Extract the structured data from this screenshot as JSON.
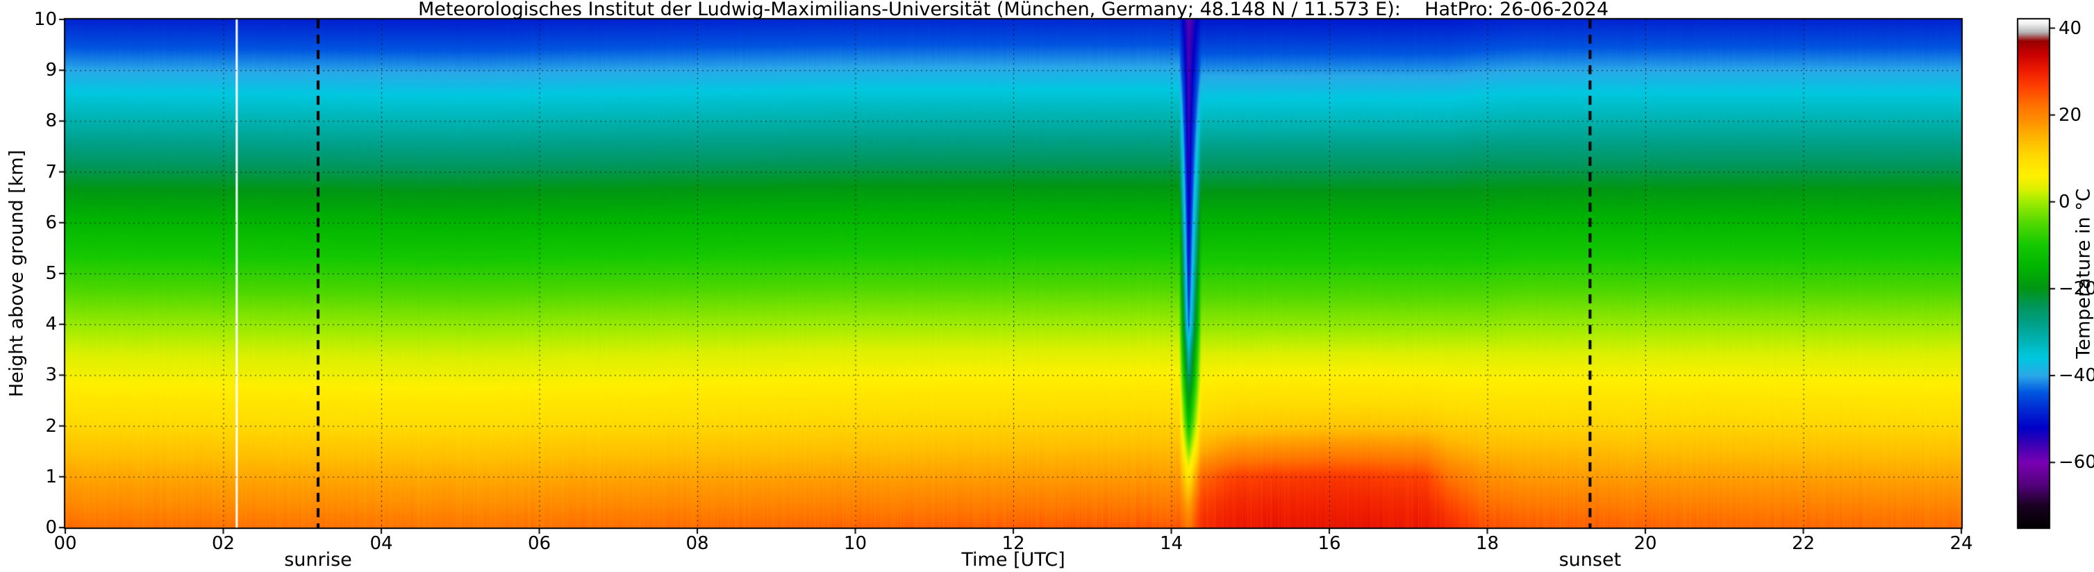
{
  "chart_data": {
    "type": "heatmap",
    "title": "Meteorologisches Institut der Ludwig-Maximilians-Universität (München, Germany; 48.148 N / 11.573 E):    HatPro: 26-06-2024",
    "xlabel": "Time [UTC]",
    "ylabel": "Height above ground [km]",
    "x_range": [
      0,
      24
    ],
    "y_range": [
      0,
      10
    ],
    "grid": {
      "x_step_hours": 2,
      "y_step_km": 1,
      "style": "dashed"
    },
    "x_ticks": [
      {
        "value": 0,
        "label": "00"
      },
      {
        "value": 2,
        "label": "02"
      },
      {
        "value": 4,
        "label": "04"
      },
      {
        "value": 6,
        "label": "06"
      },
      {
        "value": 8,
        "label": "08"
      },
      {
        "value": 10,
        "label": "10"
      },
      {
        "value": 12,
        "label": "12"
      },
      {
        "value": 14,
        "label": "14"
      },
      {
        "value": 16,
        "label": "16"
      },
      {
        "value": 18,
        "label": "18"
      },
      {
        "value": 20,
        "label": "20"
      },
      {
        "value": 22,
        "label": "22"
      },
      {
        "value": 24,
        "label": "24"
      }
    ],
    "y_ticks": [
      {
        "value": 0,
        "label": "0"
      },
      {
        "value": 1,
        "label": "1"
      },
      {
        "value": 2,
        "label": "2"
      },
      {
        "value": 3,
        "label": "3"
      },
      {
        "value": 4,
        "label": "4"
      },
      {
        "value": 5,
        "label": "5"
      },
      {
        "value": 6,
        "label": "6"
      },
      {
        "value": 7,
        "label": "7"
      },
      {
        "value": 8,
        "label": "8"
      },
      {
        "value": 9,
        "label": "9"
      },
      {
        "value": 10,
        "label": "10"
      }
    ],
    "sunrise": {
      "time_utc": 3.2,
      "label": "sunrise"
    },
    "sunset": {
      "time_utc": 19.3,
      "label": "sunset"
    },
    "data_gap_line": {
      "time_utc": 2.17,
      "color": "#ffffff"
    },
    "colorbar": {
      "label": "Temperature in °C",
      "range": [
        -75,
        42
      ],
      "ticks": [
        {
          "value": 40,
          "label": "40"
        },
        {
          "value": 20,
          "label": "20"
        },
        {
          "value": 0,
          "label": "0"
        },
        {
          "value": -20,
          "label": "−20"
        },
        {
          "value": -40,
          "label": "−40"
        },
        {
          "value": -60,
          "label": "−60"
        }
      ]
    },
    "colormap": [
      [
        -75,
        "#000000"
      ],
      [
        -70,
        "#1a0022"
      ],
      [
        -65,
        "#55007f"
      ],
      [
        -60,
        "#7a00b4"
      ],
      [
        -56,
        "#3c00b4"
      ],
      [
        -52,
        "#0000c8"
      ],
      [
        -48,
        "#0028d2"
      ],
      [
        -44,
        "#0055e0"
      ],
      [
        -40,
        "#2aa8e8"
      ],
      [
        -36,
        "#00c8e0"
      ],
      [
        -32,
        "#00b4b4"
      ],
      [
        -28,
        "#00a088"
      ],
      [
        -24,
        "#00965a"
      ],
      [
        -20,
        "#009614"
      ],
      [
        -15,
        "#00b400"
      ],
      [
        -10,
        "#14c800"
      ],
      [
        -5,
        "#50d800"
      ],
      [
        0,
        "#a0ec00"
      ],
      [
        3,
        "#dcf000"
      ],
      [
        6,
        "#fff000"
      ],
      [
        10,
        "#ffdc00"
      ],
      [
        14,
        "#ffbe00"
      ],
      [
        18,
        "#ff9600"
      ],
      [
        22,
        "#ff7300"
      ],
      [
        26,
        "#ff4600"
      ],
      [
        30,
        "#f01e00"
      ],
      [
        34,
        "#c80000"
      ],
      [
        37,
        "#960000"
      ],
      [
        39,
        "#b4b4b4"
      ],
      [
        41,
        "#f0f0f0"
      ],
      [
        42,
        "#ffffff"
      ]
    ],
    "heights_km": [
      0,
      0.2,
      0.5,
      1,
      1.5,
      2,
      2.5,
      3,
      3.5,
      4,
      4.5,
      5,
      5.5,
      6,
      6.5,
      7,
      7.5,
      8,
      8.5,
      9,
      9.5,
      10
    ],
    "profiles": [
      {
        "t": 0,
        "v": [
          22.5,
          21,
          19,
          16.5,
          13.5,
          10.5,
          8,
          5,
          2.5,
          -0.5,
          -4,
          -7.5,
          -11,
          -14.5,
          -18.5,
          -23,
          -27.5,
          -31.5,
          -35.5,
          -40,
          -44.5,
          -48.5
        ]
      },
      {
        "t": 5,
        "v": [
          21.5,
          20.5,
          18.5,
          16,
          13,
          10,
          7.5,
          4.5,
          2,
          -1,
          -4.5,
          -8,
          -11.5,
          -15,
          -19,
          -23.5,
          -28,
          -32,
          -36,
          -40.5,
          -45,
          -49
        ]
      },
      {
        "t": 10,
        "v": [
          23.5,
          22,
          20,
          17,
          14,
          11,
          8.5,
          5.5,
          3,
          0,
          -3.5,
          -7,
          -10.5,
          -14,
          -18,
          -22.5,
          -27,
          -31,
          -35,
          -39.5,
          -44,
          -48
        ]
      },
      {
        "t": 13.5,
        "v": [
          24.5,
          23,
          21,
          17.5,
          14.5,
          11.5,
          9,
          6,
          3,
          0,
          -3.5,
          -7,
          -10.5,
          -14,
          -18,
          -22.5,
          -27,
          -31,
          -35,
          -39.5,
          -44,
          -48
        ]
      },
      {
        "t": 14.1,
        "v": [
          24.5,
          23,
          21,
          17.5,
          14.5,
          11.5,
          9,
          6,
          3,
          0,
          -3.5,
          -7,
          -10.5,
          -14,
          -18,
          -22.5,
          -27,
          -31,
          -35,
          -39.5,
          -44,
          -48
        ]
      },
      {
        "t": 14.22,
        "v": [
          21,
          19.5,
          16,
          8,
          -2,
          -12,
          -20,
          -28,
          -34.5,
          -44,
          -47,
          -49.5,
          -51.5,
          -53,
          -54.5,
          -55.5,
          -56,
          -56.5,
          -57,
          -57.3,
          -57.6,
          -58
        ]
      },
      {
        "t": 14.38,
        "v": [
          28.5,
          28,
          26.5,
          23,
          16,
          11.5,
          8.5,
          5.5,
          2.5,
          -1,
          -4.5,
          -8,
          -11.5,
          -15,
          -19,
          -23.5,
          -28,
          -32.5,
          -36.5,
          -41,
          -45.5,
          -49.5
        ]
      },
      {
        "t": 14.8,
        "v": [
          30.5,
          30,
          29,
          26.5,
          19,
          12.5,
          9.5,
          6,
          2.5,
          -1,
          -4.5,
          -8,
          -11.5,
          -15,
          -19,
          -23.5,
          -28,
          -32.5,
          -36.5,
          -41,
          -45.5,
          -49.5
        ]
      },
      {
        "t": 16,
        "v": [
          31,
          30.5,
          29.5,
          27.5,
          20,
          13,
          9.5,
          6,
          2.5,
          -1,
          -4.5,
          -8,
          -11.5,
          -15,
          -19,
          -23.5,
          -28,
          -32.5,
          -36.5,
          -41,
          -45.5,
          -49.5
        ]
      },
      {
        "t": 17.2,
        "v": [
          30.5,
          30,
          29,
          26.5,
          19.5,
          13,
          9.5,
          6,
          2.5,
          -1,
          -4.5,
          -8,
          -11.5,
          -15,
          -19,
          -23.5,
          -28,
          -32.5,
          -36.5,
          -41,
          -45.5,
          -49.5
        ]
      },
      {
        "t": 17.5,
        "v": [
          29,
          28,
          26,
          22,
          16.5,
          12,
          9,
          5.5,
          2.5,
          -1,
          -4.5,
          -8,
          -11.5,
          -15,
          -19,
          -23.5,
          -28,
          -32.5,
          -36.5,
          -41,
          -45.5,
          -49.5
        ]
      },
      {
        "t": 17.9,
        "v": [
          25.5,
          24.5,
          22.5,
          19,
          15,
          11.5,
          8.5,
          5.5,
          2.5,
          -1,
          -4.5,
          -8,
          -11.5,
          -15,
          -19,
          -23,
          -27.5,
          -32,
          -36,
          -40.5,
          -45,
          -49
        ]
      },
      {
        "t": 18.5,
        "v": [
          24,
          23,
          21,
          17.5,
          14.5,
          11,
          8.5,
          5.5,
          2.5,
          -0.5,
          -4,
          -7.5,
          -11,
          -14.5,
          -18.5,
          -23,
          -27.5,
          -31.5,
          -35.5,
          -40,
          -44.5,
          -48.5
        ]
      },
      {
        "t": 21,
        "v": [
          23,
          22,
          20,
          17,
          14,
          11,
          8.5,
          5.5,
          2.5,
          -0.5,
          -4,
          -7.5,
          -11,
          -14.5,
          -18.5,
          -23,
          -27.5,
          -31.5,
          -35.5,
          -40,
          -44.5,
          -48.5
        ]
      },
      {
        "t": 24,
        "v": [
          22.5,
          21.5,
          19.5,
          16.5,
          13.5,
          10.5,
          8,
          5,
          2.5,
          -0.5,
          -4,
          -7.5,
          -11,
          -14.5,
          -18.5,
          -23,
          -27.5,
          -31.5,
          -35.5,
          -40,
          -44.5,
          -48.5
        ]
      }
    ]
  }
}
